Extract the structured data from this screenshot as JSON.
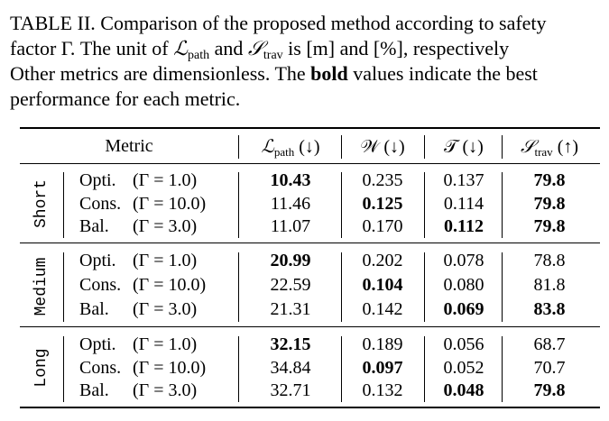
{
  "caption": {
    "line1": "TABLE II. Comparison of the proposed method according to safety",
    "line2_a": "factor Γ. The unit of ",
    "line2_L": "ℒ",
    "line2_Lsub": "path",
    "line2_b": " and ",
    "line2_S": "𝒮",
    "line2_Ssub": "trav",
    "line2_c": " is [m] and [%], respectively",
    "line3_a": "Other metrics are dimensionless. The ",
    "line3_bold": "bold",
    "line3_b": " values indicate the best",
    "line4": "performance for each metric."
  },
  "header": {
    "metric": "Metric",
    "L": "ℒ",
    "L_sub": "path",
    "L_arrow": " (↓)",
    "W": "𝒲 (↓)",
    "T": "𝒯 (↓)",
    "S": "𝒮",
    "S_sub": "trav",
    "S_arrow": " (↑)"
  },
  "groups": [
    {
      "name": "Short",
      "rows": [
        {
          "method": "Opti.",
          "param": "(Γ = 1.0)",
          "L": "10.43",
          "W": "0.235",
          "T": "0.137",
          "S": "79.8",
          "bold": [
            "L",
            "S"
          ]
        },
        {
          "method": "Cons.",
          "param": "(Γ = 10.0)",
          "L": "11.46",
          "W": "0.125",
          "T": "0.114",
          "S": "79.8",
          "bold": [
            "W",
            "S"
          ]
        },
        {
          "method": "Bal.",
          "param": "(Γ = 3.0)",
          "L": "11.07",
          "W": "0.170",
          "T": "0.112",
          "S": "79.8",
          "bold": [
            "T",
            "S"
          ]
        }
      ]
    },
    {
      "name": "Medium",
      "rows": [
        {
          "method": "Opti.",
          "param": "(Γ = 1.0)",
          "L": "20.99",
          "W": "0.202",
          "T": "0.078",
          "S": "78.8",
          "bold": [
            "L"
          ]
        },
        {
          "method": "Cons.",
          "param": "(Γ = 10.0)",
          "L": "22.59",
          "W": "0.104",
          "T": "0.080",
          "S": "81.8",
          "bold": [
            "W"
          ]
        },
        {
          "method": "Bal.",
          "param": "(Γ = 3.0)",
          "L": "21.31",
          "W": "0.142",
          "T": "0.069",
          "S": "83.8",
          "bold": [
            "T",
            "S"
          ]
        }
      ]
    },
    {
      "name": "Long",
      "rows": [
        {
          "method": "Opti.",
          "param": "(Γ = 1.0)",
          "L": "32.15",
          "W": "0.189",
          "T": "0.056",
          "S": "68.7",
          "bold": [
            "L"
          ]
        },
        {
          "method": "Cons.",
          "param": "(Γ = 10.0)",
          "L": "34.84",
          "W": "0.097",
          "T": "0.052",
          "S": "70.7",
          "bold": [
            "W"
          ]
        },
        {
          "method": "Bal.",
          "param": "(Γ = 3.0)",
          "L": "32.71",
          "W": "0.132",
          "T": "0.048",
          "S": "79.8",
          "bold": [
            "T",
            "S"
          ]
        }
      ]
    }
  ]
}
